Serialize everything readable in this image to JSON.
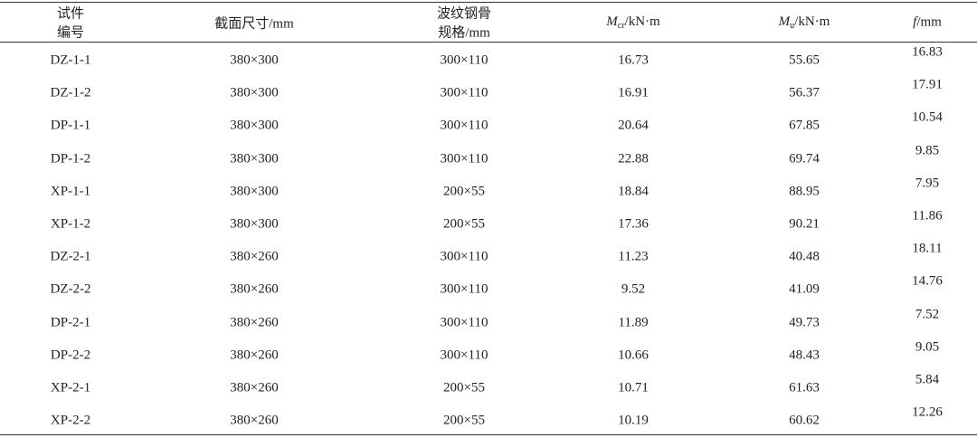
{
  "table": {
    "headers": [
      {
        "lines": [
          "试件",
          "编号"
        ]
      },
      {
        "lines": [
          "截面尺寸/mm"
        ]
      },
      {
        "lines": [
          "波纹钢骨",
          "规格/mm"
        ]
      },
      {
        "symbol": "M",
        "sub": "cr",
        "unit": "/kN·m"
      },
      {
        "symbol": "M",
        "sub": "u",
        "unit": "/kN·m"
      },
      {
        "symbol": "f",
        "unit": "/mm"
      }
    ],
    "rows": [
      [
        "DZ-1-1",
        "380×300",
        "300×110",
        16.73,
        55.65,
        16.83
      ],
      [
        "DZ-1-2",
        "380×300",
        "300×110",
        16.91,
        56.37,
        17.91
      ],
      [
        "DP-1-1",
        "380×300",
        "300×110",
        20.64,
        67.85,
        10.54
      ],
      [
        "DP-1-2",
        "380×300",
        "300×110",
        22.88,
        69.74,
        9.85
      ],
      [
        "XP-1-1",
        "380×300",
        "200×55",
        18.84,
        88.95,
        7.95
      ],
      [
        "XP-1-2",
        "380×300",
        "200×55",
        17.36,
        90.21,
        11.86
      ],
      [
        "DZ-2-1",
        "380×260",
        "300×110",
        11.23,
        40.48,
        18.11
      ],
      [
        "DZ-2-2",
        "380×260",
        "300×110",
        9.52,
        41.09,
        14.76
      ],
      [
        "DP-2-1",
        "380×260",
        "300×110",
        11.89,
        49.73,
        7.52
      ],
      [
        "DP-2-2",
        "380×260",
        "300×110",
        10.66,
        48.43,
        9.05
      ],
      [
        "XP-2-1",
        "380×260",
        "200×55",
        10.71,
        61.63,
        5.84
      ],
      [
        "XP-2-2",
        "380×260",
        "200×55",
        10.19,
        60.62,
        12.26
      ]
    ]
  }
}
